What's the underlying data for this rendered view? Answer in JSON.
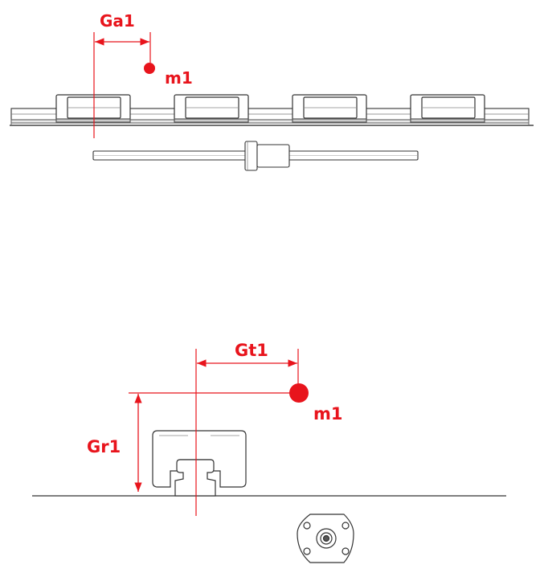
{
  "colors": {
    "accent": "#e8141c",
    "outline": "#333333",
    "ground": "#444444"
  },
  "top_view": {
    "label_offset": "Ga1",
    "label_mass": "m1",
    "carriage_count": 4
  },
  "side_view": {
    "label_offset_horizontal": "Gt1",
    "label_offset_vertical": "Gr1",
    "label_mass": "m1"
  },
  "icons": [
    "mass-point-icon",
    "dimension-arrow-icon",
    "flange-nut-icon"
  ]
}
